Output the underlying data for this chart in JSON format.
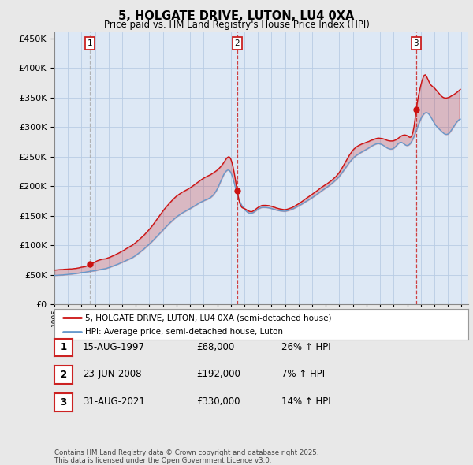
{
  "title": "5, HOLGATE DRIVE, LUTON, LU4 0XA",
  "subtitle": "Price paid vs. HM Land Registry's House Price Index (HPI)",
  "ylim": [
    0,
    460000
  ],
  "yticks": [
    0,
    50000,
    100000,
    150000,
    200000,
    250000,
    300000,
    350000,
    400000,
    450000
  ],
  "xlim_start": 1995.0,
  "xlim_end": 2025.5,
  "purchases": [
    {
      "label": "1",
      "year": 1997.62,
      "price": 68000,
      "vline_style": "dashed_gray"
    },
    {
      "label": "2",
      "year": 2008.48,
      "price": 192000,
      "vline_style": "dashed_red"
    },
    {
      "label": "3",
      "year": 2021.66,
      "price": 330000,
      "vline_style": "dashed_red"
    }
  ],
  "vline_color_gray": "#aaaaaa",
  "vline_color_red": "#cc2222",
  "red_line_color": "#cc1111",
  "blue_line_color": "#6699cc",
  "plot_bg_color": "#dde8f5",
  "background_color": "#e8e8e8",
  "legend_red": "5, HOLGATE DRIVE, LUTON, LU4 0XA (semi-detached house)",
  "legend_blue": "HPI: Average price, semi-detached house, Luton",
  "table_rows": [
    {
      "num": "1",
      "date": "15-AUG-1997",
      "price": "£68,000",
      "hpi": "26% ↑ HPI"
    },
    {
      "num": "2",
      "date": "23-JUN-2008",
      "price": "£192,000",
      "hpi": "7% ↑ HPI"
    },
    {
      "num": "3",
      "date": "31-AUG-2021",
      "price": "£330,000",
      "hpi": "14% ↑ HPI"
    }
  ],
  "footnote": "Contains HM Land Registry data © Crown copyright and database right 2025.\nThis data is licensed under the Open Government Licence v3.0."
}
